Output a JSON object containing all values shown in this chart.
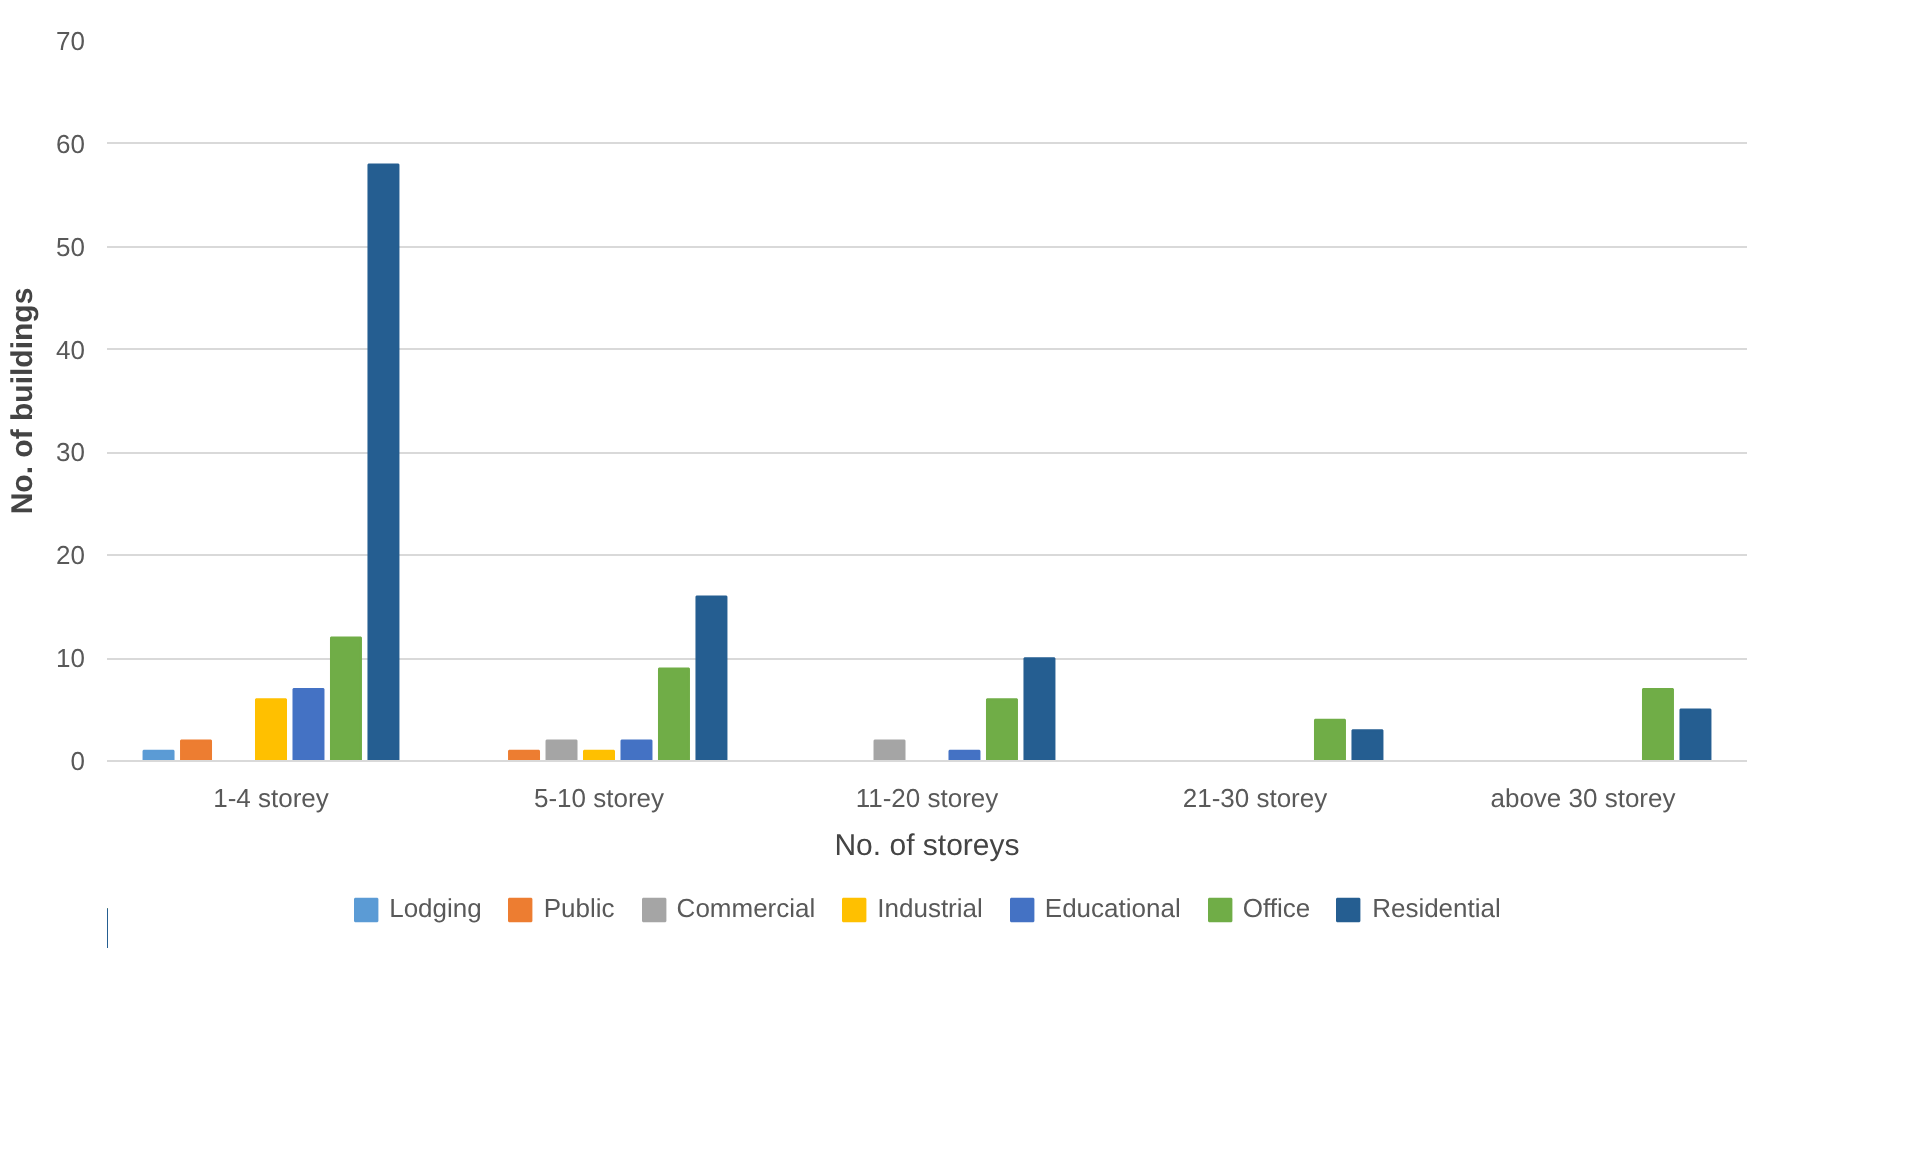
{
  "chart_data": {
    "type": "bar",
    "xlabel": "No. of storeys",
    "ylabel": "No. of buildings",
    "categories": [
      "1-4 storey",
      "5-10 storey",
      "11-20 storey",
      "21-30 storey",
      "above 30 storey"
    ],
    "series": [
      {
        "name": "Lodging",
        "color": "#5b9bd5",
        "values": [
          1,
          0,
          0,
          0,
          0
        ]
      },
      {
        "name": "Public",
        "color": "#ed7d31",
        "values": [
          2,
          1,
          0,
          0,
          0
        ]
      },
      {
        "name": "Commercial",
        "color": "#a5a5a5",
        "values": [
          0,
          2,
          2,
          0,
          0
        ]
      },
      {
        "name": "Industrial",
        "color": "#ffc000",
        "values": [
          6,
          1,
          0,
          0,
          0
        ]
      },
      {
        "name": "Educational",
        "color": "#4472c4",
        "values": [
          7,
          2,
          1,
          0,
          0
        ]
      },
      {
        "name": "Office",
        "color": "#70ad47",
        "values": [
          12,
          9,
          6,
          4,
          7
        ]
      },
      {
        "name": "Residential",
        "color": "#255e91",
        "values": [
          58,
          16,
          10,
          3,
          5
        ]
      }
    ],
    "ylim": [
      0,
      70
    ],
    "yticks": [
      0,
      10,
      20,
      30,
      40,
      50,
      60,
      70
    ],
    "grid": "y",
    "legend": "bottom"
  }
}
